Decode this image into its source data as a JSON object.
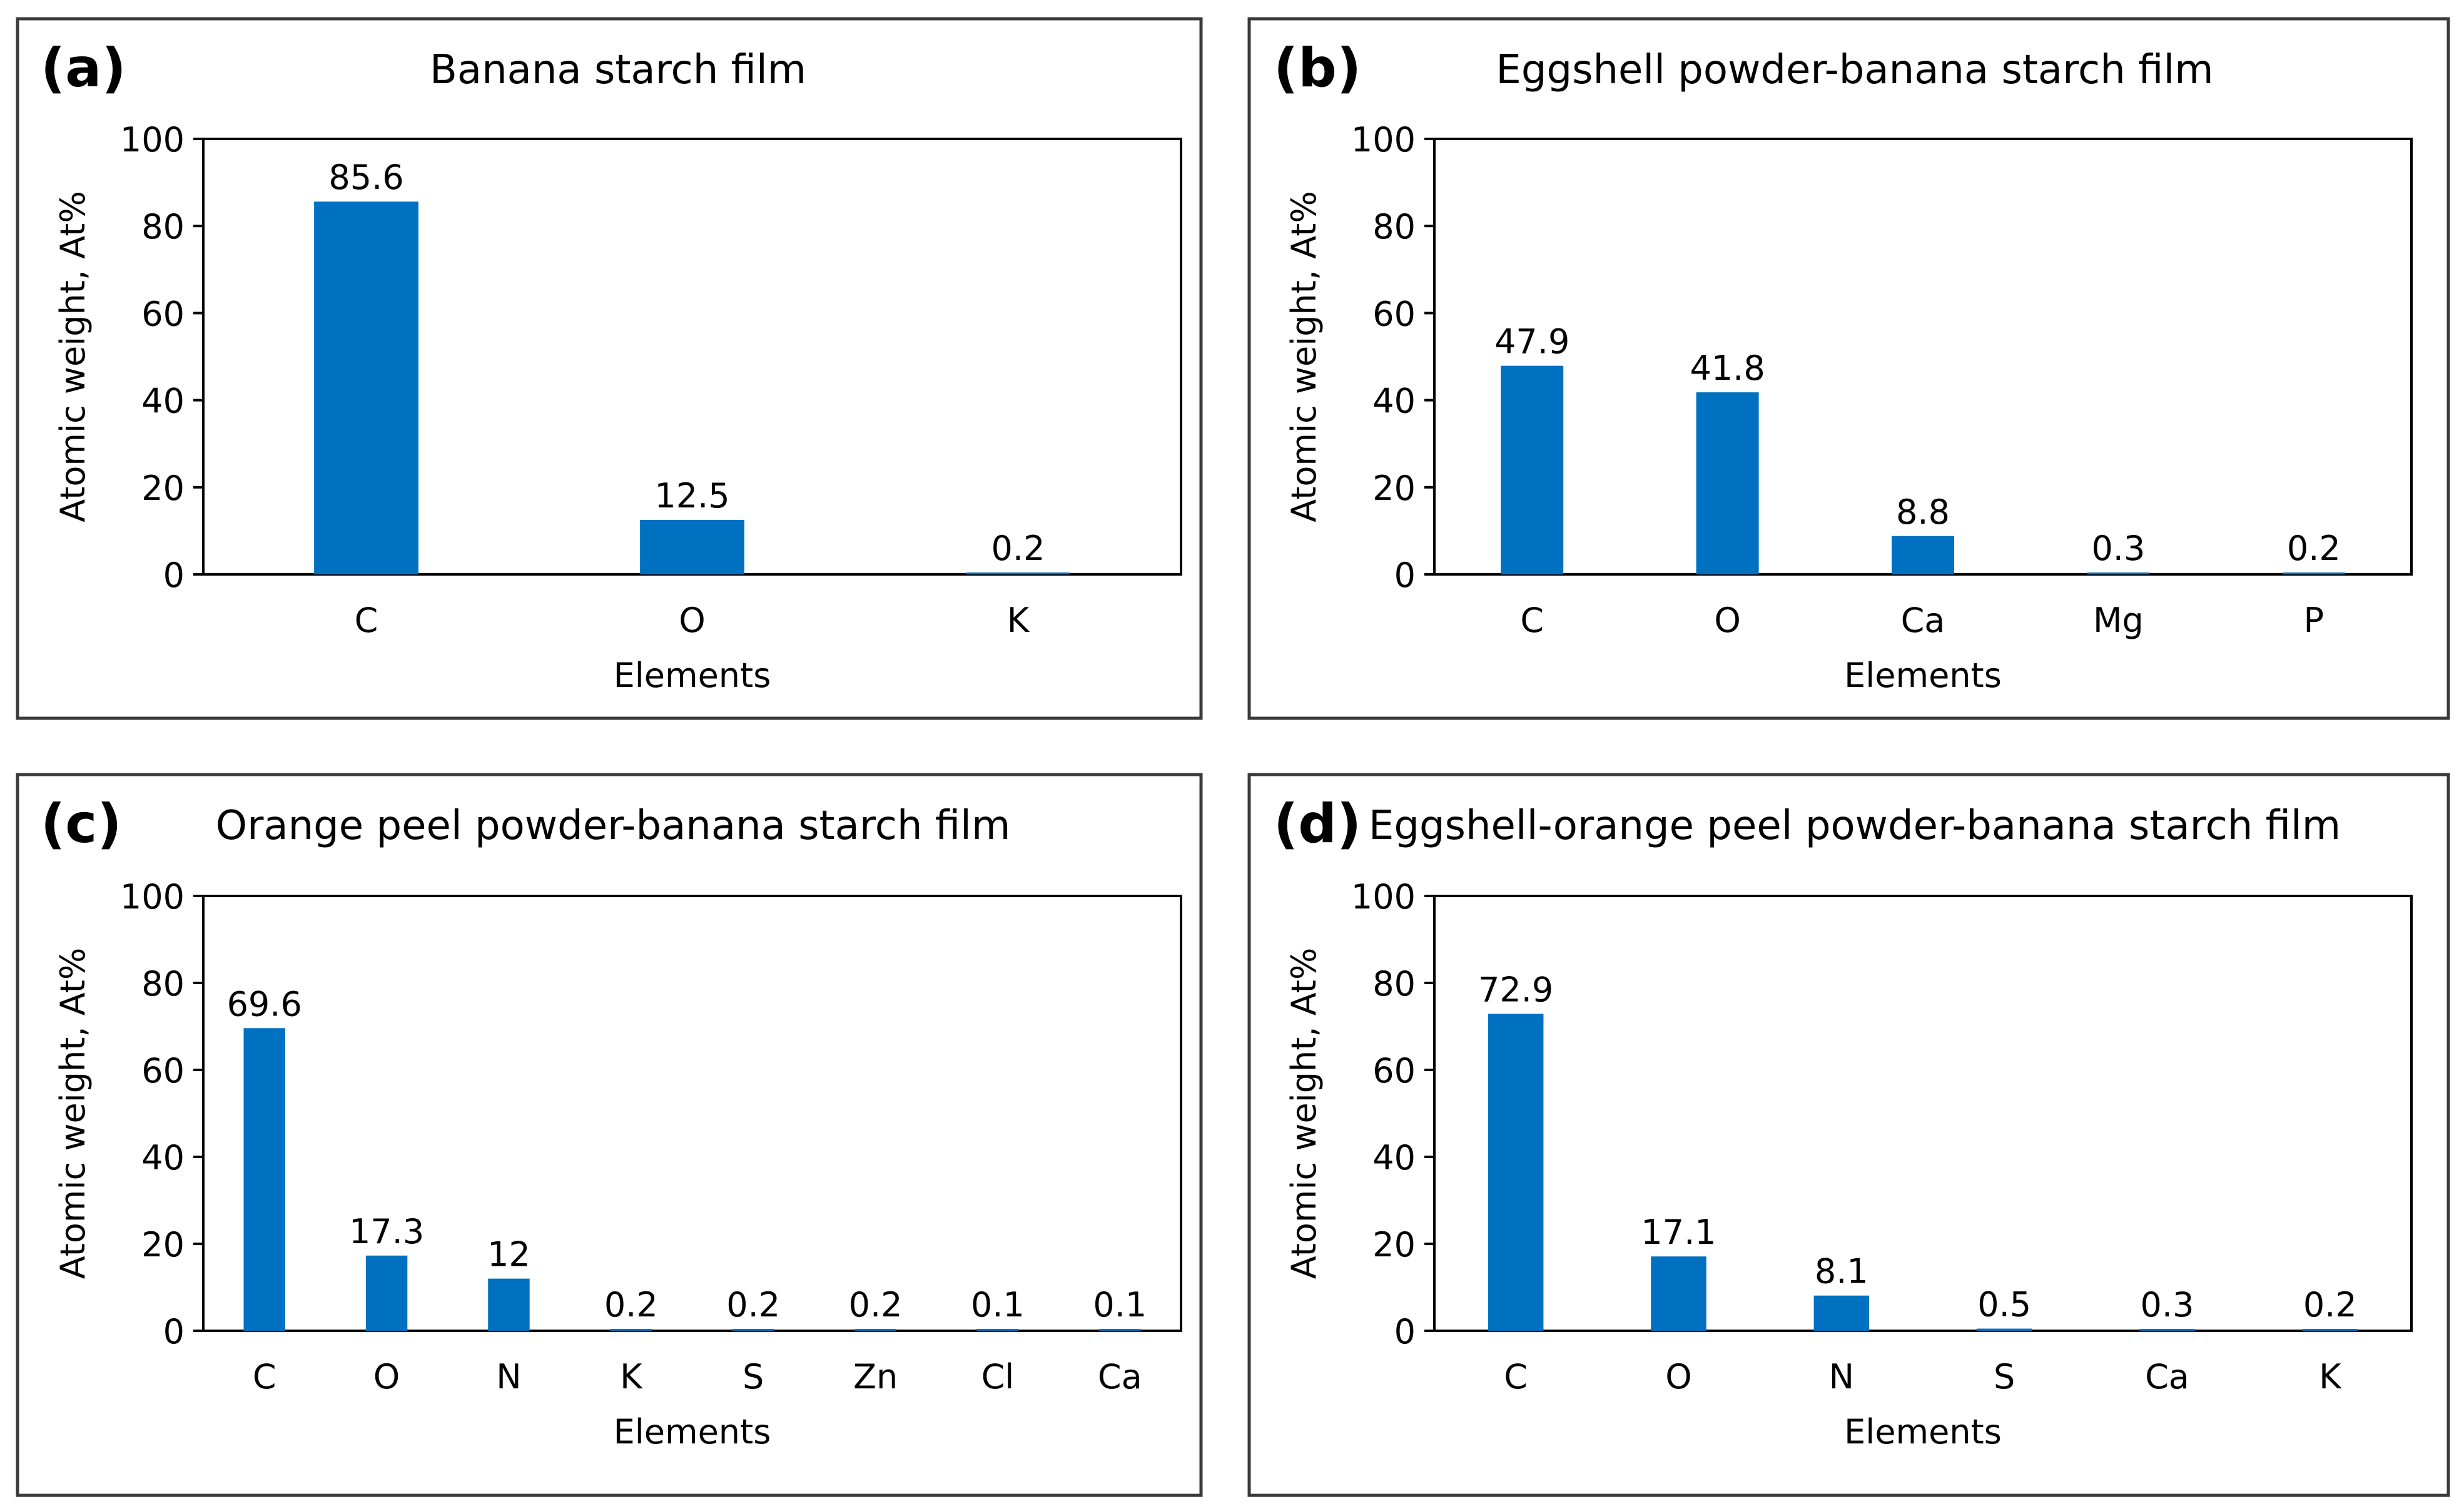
{
  "chart_data": [
    {
      "type": "bar",
      "panel_label": "(a)",
      "title": "Banana starch film",
      "xlabel": "Elements",
      "ylabel": "Atomic weight, At%",
      "ylim": [
        0,
        100
      ],
      "yticks": [
        "0",
        "20",
        "40",
        "60",
        "80",
        "100"
      ],
      "categories": [
        "C",
        "O",
        "K"
      ],
      "values": [
        85.6,
        12.5,
        0.2
      ],
      "labels": [
        "85.6",
        "12.5",
        "0.2"
      ],
      "color": "#0070C0",
      "grid": false,
      "legend": "none"
    },
    {
      "type": "bar",
      "panel_label": "(b)",
      "title": "Eggshell powder-banana starch film",
      "xlabel": "Elements",
      "ylabel": "Atomic weight, At%",
      "ylim": [
        0,
        100
      ],
      "yticks": [
        "0",
        "20",
        "40",
        "60",
        "80",
        "100"
      ],
      "categories": [
        "C",
        "O",
        "Ca",
        "Mg",
        "P"
      ],
      "values": [
        47.9,
        41.8,
        8.8,
        0.3,
        0.2
      ],
      "labels": [
        "47.9",
        "41.8",
        "8.8",
        "0.3",
        "0.2"
      ],
      "color": "#0070C0",
      "grid": false,
      "legend": "none"
    },
    {
      "type": "bar",
      "panel_label": "(c)",
      "title": "Orange peel powder-banana starch film",
      "xlabel": "Elements",
      "ylabel": "Atomic weight, At%",
      "ylim": [
        0,
        100
      ],
      "yticks": [
        "0",
        "20",
        "40",
        "60",
        "80",
        "100"
      ],
      "categories": [
        "C",
        "O",
        "N",
        "K",
        "S",
        "Zn",
        "Cl",
        "Ca"
      ],
      "values": [
        69.6,
        17.3,
        12,
        0.2,
        0.2,
        0.2,
        0.1,
        0.1
      ],
      "labels": [
        "69.6",
        "17.3",
        "12",
        "0.2",
        "0.2",
        "0.2",
        "0.1",
        "0.1"
      ],
      "color": "#0070C0",
      "grid": false,
      "legend": "none"
    },
    {
      "type": "bar",
      "panel_label": "(d)",
      "title": "Eggshell-orange peel powder-banana starch film",
      "xlabel": "Elements",
      "ylabel": "Atomic weight, At%",
      "ylim": [
        0,
        100
      ],
      "yticks": [
        "0",
        "20",
        "40",
        "60",
        "80",
        "100"
      ],
      "categories": [
        "C",
        "O",
        "N",
        "S",
        "Ca",
        "K"
      ],
      "values": [
        72.9,
        17.1,
        8.1,
        0.5,
        0.3,
        0.2
      ],
      "labels": [
        "72.9",
        "17.1",
        "8.1",
        "0.5",
        "0.3",
        "0.2"
      ],
      "color": "#0070C0",
      "grid": false,
      "legend": "none"
    }
  ]
}
